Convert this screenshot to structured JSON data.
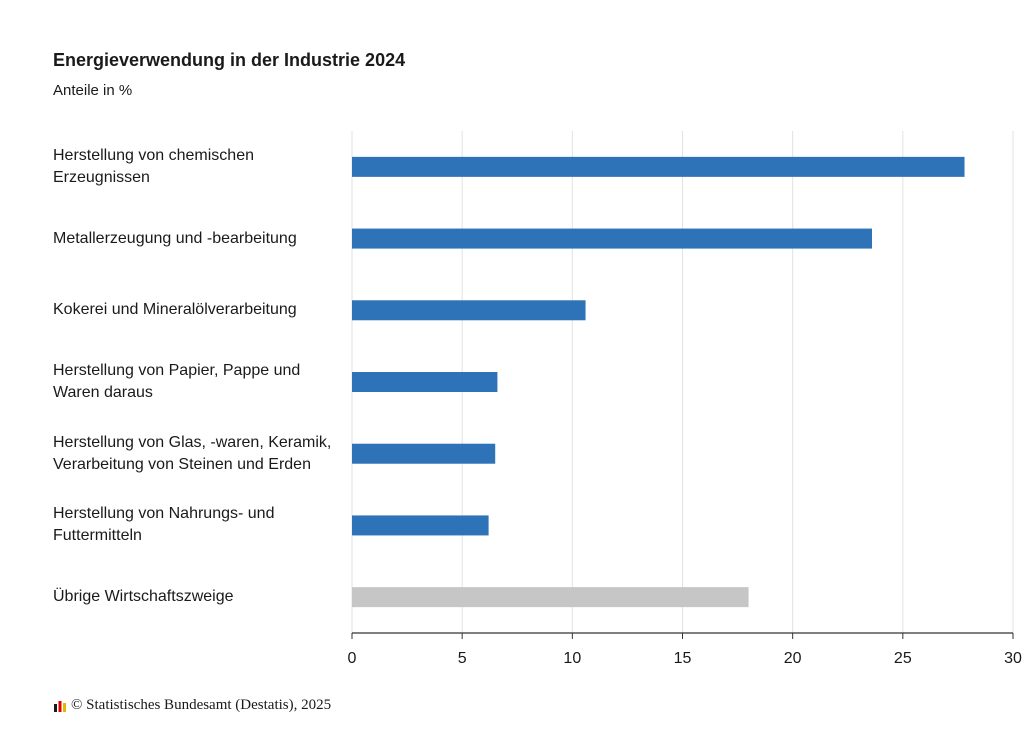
{
  "chart_data": {
    "type": "barh",
    "title": "Energieverwendung in der Industrie 2024",
    "subtitle": "Anteile in %",
    "categories": [
      "Herstellung von chemischen Erzeugnissen",
      "Metallerzeugung und -bearbeitung",
      "Kokerei und Mineralölverarbeitung",
      "Herstellung von Papier, Pappe und Waren daraus",
      "Herstellung von Glas, -waren, Keramik, Verarbeitung von Steinen und Erden",
      "Herstellung von Nahrungs- und Futtermitteln",
      "Übrige Wirtschaftszweige"
    ],
    "values": [
      27.8,
      23.6,
      10.6,
      6.6,
      6.5,
      6.2,
      18.0
    ],
    "colors": [
      "#2e73b8",
      "#2e73b8",
      "#2e73b8",
      "#2e73b8",
      "#2e73b8",
      "#2e73b8",
      "#c6c6c6"
    ],
    "xlim": [
      0,
      30
    ],
    "xticks": [
      0,
      5,
      10,
      15,
      20,
      25,
      30
    ],
    "grid": true,
    "source": "© Statistisches Bundesamt (Destatis), 2025"
  }
}
